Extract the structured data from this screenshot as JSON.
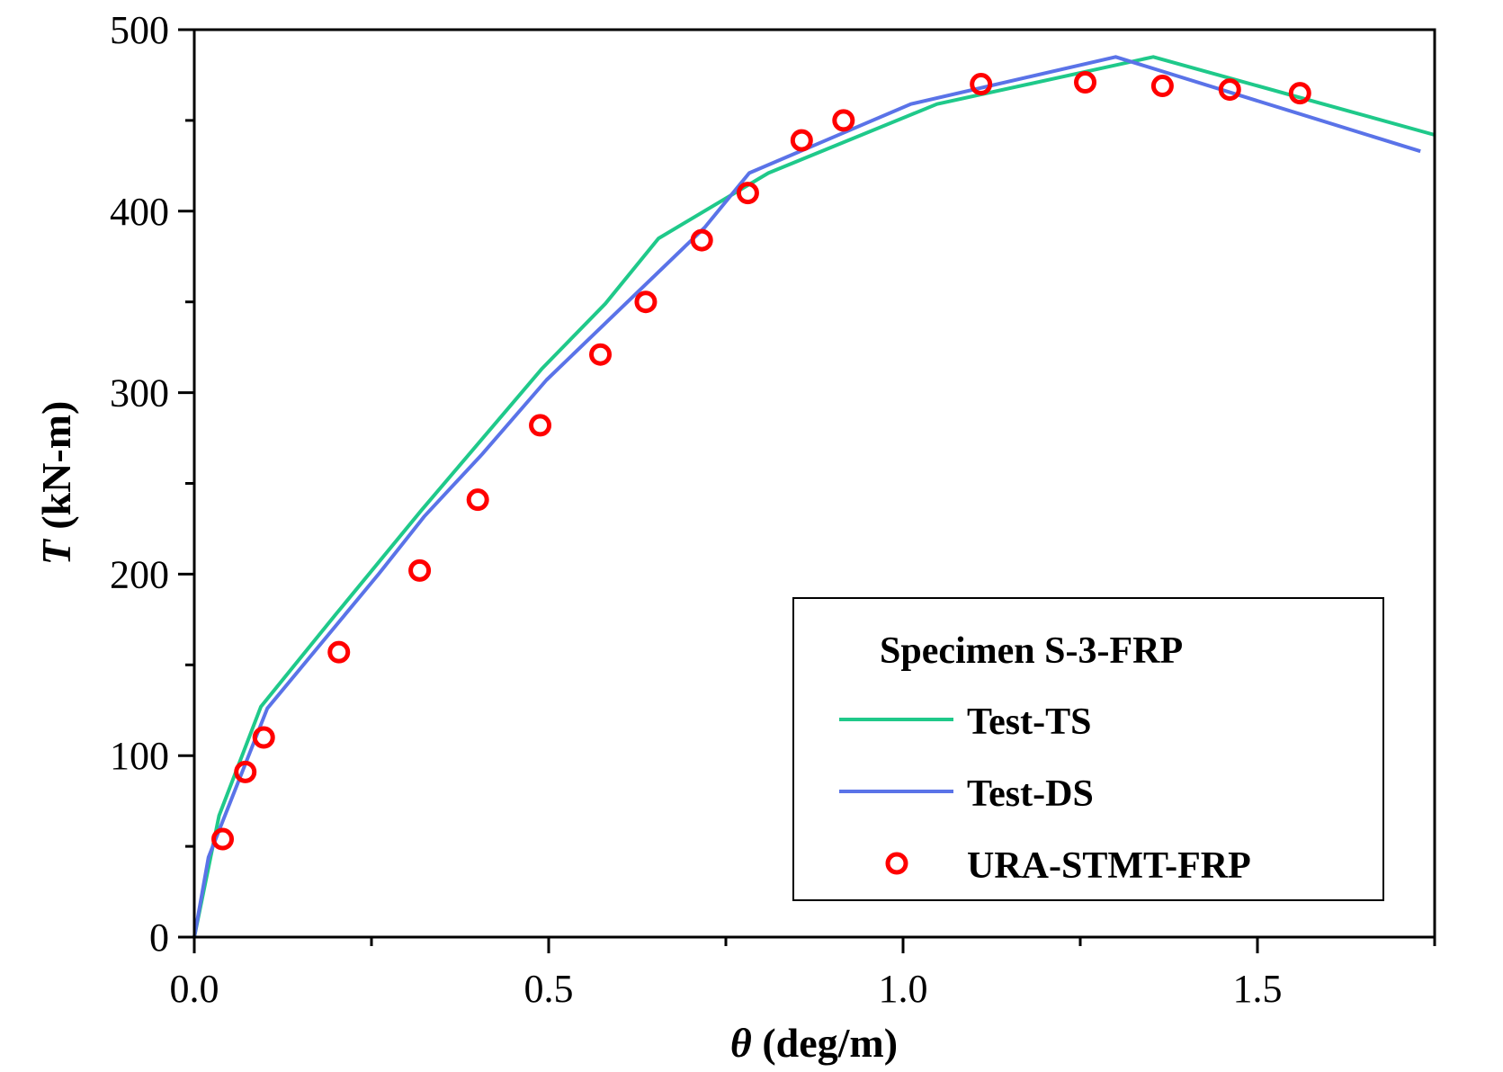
{
  "chart_data": {
    "type": "line",
    "xlabel_symbol": "θ",
    "xlabel_unit": "(deg/m)",
    "ylabel_symbol": "T",
    "ylabel_unit": "(kN-m)",
    "xlim": [
      0,
      1.75
    ],
    "ylim": [
      0,
      500
    ],
    "x_ticks": [
      "0.0",
      "0.5",
      "1.0",
      "1.5"
    ],
    "x_tick_values": [
      0,
      0.5,
      1.0,
      1.5
    ],
    "y_ticks": [
      "0",
      "100",
      "200",
      "300",
      "400",
      "500"
    ],
    "y_tick_values": [
      0,
      100,
      200,
      300,
      400,
      500
    ],
    "grid": false,
    "legend": {
      "title": "Specimen S-3-FRP",
      "placement": "bottom-right"
    },
    "series": [
      {
        "name": "Test-TS",
        "kind": "line",
        "color": "#1fc98a",
        "x": [
          0,
          0.035,
          0.094,
          0.2,
          0.32,
          0.49,
          0.58,
          0.655,
          0.81,
          1.048,
          1.353,
          1.75
        ],
        "y": [
          0,
          67,
          127,
          178,
          235,
          313,
          349,
          385,
          421,
          459,
          485,
          442
        ]
      },
      {
        "name": "Test-DS",
        "kind": "line",
        "color": "#5a73e8",
        "x": [
          0,
          0.02,
          0.103,
          0.26,
          0.325,
          0.406,
          0.497,
          0.72,
          0.783,
          1.011,
          1.3,
          1.73
        ],
        "y": [
          0,
          44,
          126,
          200,
          232,
          266,
          307,
          391,
          421,
          459,
          485,
          433
        ]
      },
      {
        "name": "URA-STMT-FRP",
        "kind": "scatter",
        "marker": "open-circle",
        "color": "#ff0000",
        "x": [
          0.04,
          0.072,
          0.098,
          0.204,
          0.318,
          0.4,
          0.488,
          0.573,
          0.637,
          0.716,
          0.781,
          0.857,
          0.916,
          1.11,
          1.257,
          1.366,
          1.461,
          1.56
        ],
        "y": [
          54,
          91,
          110,
          157,
          202,
          241,
          282,
          321,
          350,
          384,
          410,
          439,
          450,
          470,
          471,
          469,
          467,
          465
        ]
      }
    ]
  }
}
